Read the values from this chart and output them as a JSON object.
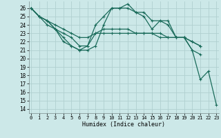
{
  "xlabel": "Humidex (Indice chaleur)",
  "background_color": "#cce8e8",
  "grid_color": "#b0d0d0",
  "line_color": "#1a6b5a",
  "x_ticks": [
    0,
    1,
    2,
    3,
    4,
    5,
    6,
    7,
    8,
    9,
    10,
    11,
    12,
    13,
    14,
    15,
    16,
    17,
    18,
    19,
    20,
    21,
    22,
    23
  ],
  "ylim": [
    13.5,
    26.8
  ],
  "xlim": [
    -0.3,
    23.3
  ],
  "yticks": [
    14,
    15,
    16,
    17,
    18,
    19,
    20,
    21,
    22,
    23,
    24,
    25,
    26
  ],
  "series": [
    [
      26,
      25,
      24.5,
      23.5,
      22.5,
      21.5,
      21,
      21.5,
      24,
      25,
      26,
      26,
      26,
      25.5,
      25.5,
      24.5,
      24.5,
      24,
      22.5,
      22.5,
      21,
      20.5,
      null,
      null
    ],
    [
      26,
      25,
      24,
      23.5,
      23,
      22.5,
      21.5,
      21.5,
      23,
      23.5,
      23.5,
      23.5,
      23.5,
      23,
      23,
      23,
      23,
      22.5,
      22.5,
      22.5,
      22,
      21.5,
      null,
      null
    ],
    [
      26,
      25,
      24.5,
      24,
      23.5,
      23,
      22.5,
      22.5,
      23,
      23,
      23,
      23,
      23,
      23,
      23,
      23,
      22.5,
      22.5,
      22.5,
      22.5,
      22,
      21.5,
      null,
      null
    ],
    [
      26,
      25,
      24.5,
      23.5,
      22,
      21.5,
      21,
      21,
      21.5,
      24,
      26,
      26,
      26.5,
      25.5,
      25,
      23.5,
      24.5,
      24.5,
      22.5,
      22.5,
      21,
      17.5,
      18.5,
      14.5
    ]
  ]
}
